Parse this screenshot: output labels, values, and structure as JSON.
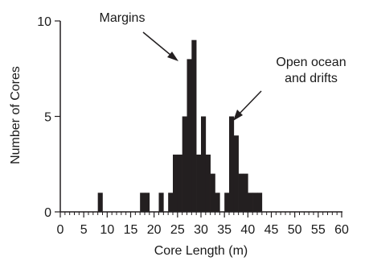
{
  "chart_data": {
    "type": "bar",
    "title": "",
    "xlabel": "Core Length (m)",
    "ylabel": "Number of Cores",
    "xlim": [
      0,
      60
    ],
    "ylim": [
      0,
      10
    ],
    "bin_width": 1,
    "x_ticks": [
      0,
      5,
      10,
      15,
      20,
      25,
      30,
      35,
      40,
      45,
      50,
      55,
      60
    ],
    "y_ticks": [
      0,
      5,
      10
    ],
    "bins": [
      {
        "x": 8,
        "count": 1
      },
      {
        "x": 17,
        "count": 1
      },
      {
        "x": 18,
        "count": 1
      },
      {
        "x": 21,
        "count": 1
      },
      {
        "x": 23,
        "count": 1
      },
      {
        "x": 24,
        "count": 3
      },
      {
        "x": 25,
        "count": 3
      },
      {
        "x": 26,
        "count": 5
      },
      {
        "x": 27,
        "count": 8
      },
      {
        "x": 28,
        "count": 9
      },
      {
        "x": 29,
        "count": 3
      },
      {
        "x": 30,
        "count": 5
      },
      {
        "x": 31,
        "count": 3
      },
      {
        "x": 32,
        "count": 2
      },
      {
        "x": 33,
        "count": 1
      },
      {
        "x": 35,
        "count": 1
      },
      {
        "x": 36,
        "count": 5
      },
      {
        "x": 37,
        "count": 4
      },
      {
        "x": 38,
        "count": 2
      },
      {
        "x": 39,
        "count": 2
      },
      {
        "x": 40,
        "count": 1
      },
      {
        "x": 41,
        "count": 1
      },
      {
        "x": 42,
        "count": 1
      }
    ],
    "bar_color": "#231f20",
    "grid": false,
    "annotations": [
      {
        "lines": [
          "Margins"
        ],
        "points_to_x": 27
      },
      {
        "lines": [
          "Open ocean",
          "and drifts"
        ],
        "points_to_x": 36
      }
    ]
  }
}
